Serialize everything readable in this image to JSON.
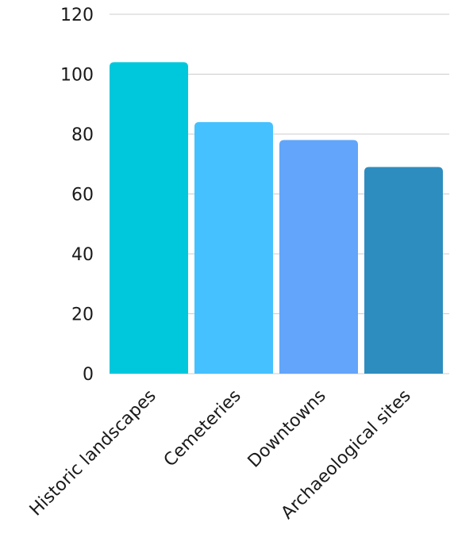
{
  "chart_data": {
    "type": "bar",
    "title": "",
    "xlabel": "",
    "ylabel": "",
    "categories": [
      "Historic landscapes",
      "Cemeteries",
      "Downtowns",
      "Archaeological sites"
    ],
    "values": [
      104,
      84,
      78,
      69
    ],
    "colors": [
      "#00C8DC",
      "#45C1FF",
      "#62A5FA",
      "#2E8DBF"
    ],
    "ylim": [
      0,
      120
    ],
    "yticks": [
      0,
      20,
      40,
      60,
      80,
      100,
      120
    ],
    "grid": true,
    "grid_color": "#cccccc",
    "legend": "none"
  }
}
